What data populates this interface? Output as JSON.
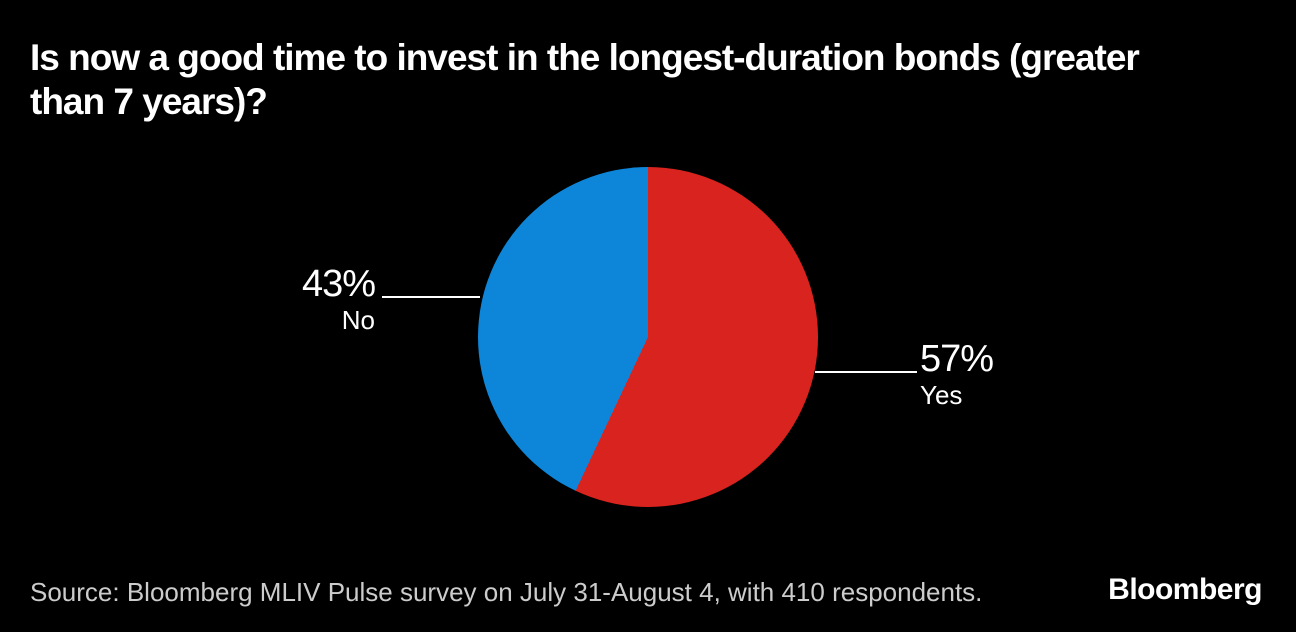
{
  "title": {
    "full": "Is now a good time to invest in the longest-duration bonds (greater than 7 years)?",
    "line1": "Is now a good time to invest in the longest-duration bonds (greater",
    "line2": "than 7 years)?"
  },
  "chart_data": {
    "type": "pie",
    "title": "Is now a good time to invest in the longest-duration bonds (greater than 7 years)?",
    "slices": [
      {
        "label": "Yes",
        "value": 57,
        "display": "57%",
        "color": "#d9231f"
      },
      {
        "label": "No",
        "value": 43,
        "display": "43%",
        "color": "#0d85d8"
      }
    ],
    "start_angle_deg": 0,
    "direction": "clockwise",
    "background": "#000000",
    "label_color": "#ffffff",
    "legend": "callouts-with-leader-lines"
  },
  "footer": {
    "source": "Source: Bloomberg MLIV Pulse survey on July 31-August 4, with 410 respondents.",
    "brand": "Bloomberg"
  },
  "colors": {
    "background": "#000000",
    "title": "#ffffff",
    "source": "#cccccc",
    "yes_red": "#d9231f",
    "no_blue": "#0d85d8",
    "leader_line": "#ffffff"
  }
}
